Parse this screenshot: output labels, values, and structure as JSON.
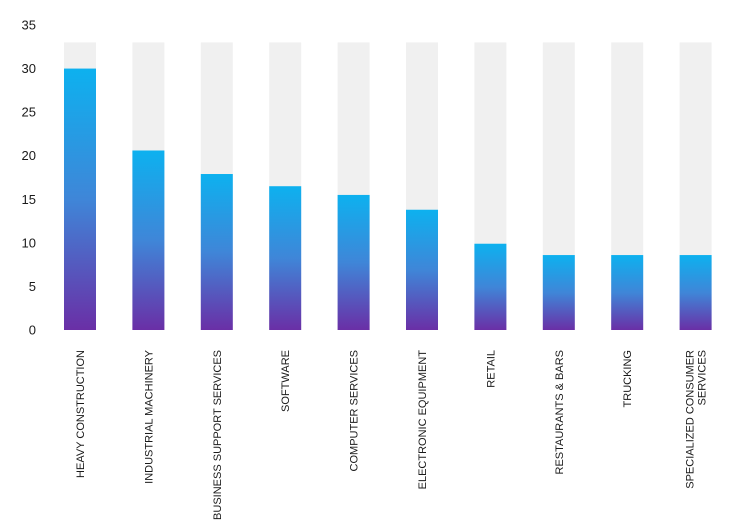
{
  "chart_data": {
    "type": "bar",
    "categories": [
      [
        "HEAVY CONSTRUCTION"
      ],
      [
        "INDUSTRIAL MACHINERY"
      ],
      [
        "BUSINESS SUPPORT SERVICES"
      ],
      [
        "SOFTWARE"
      ],
      [
        "COMPUTER SERVICES"
      ],
      [
        "ELECTRONIC EQUIPMENT"
      ],
      [
        "RETAIL"
      ],
      [
        "RESTAURANTS & BARS"
      ],
      [
        "TRUCKING"
      ],
      [
        "SPECIALIZED CONSUMER",
        "SERVICES"
      ]
    ],
    "values": [
      30,
      20.6,
      17.9,
      16.5,
      15.5,
      13.8,
      9.9,
      8.6,
      8.6,
      8.6
    ],
    "track_max": 33,
    "ylim": [
      0,
      35
    ],
    "yticks": [
      0,
      5,
      10,
      15,
      20,
      25,
      30,
      35
    ],
    "title": "",
    "xlabel": "",
    "ylabel": "",
    "grid": false,
    "legend": "none",
    "colors": {
      "bar_top": "#0db1ef",
      "bar_mid": "#3f86d8",
      "bar_bottom": "#6a2fa6",
      "track": "#f0f0f0"
    }
  }
}
